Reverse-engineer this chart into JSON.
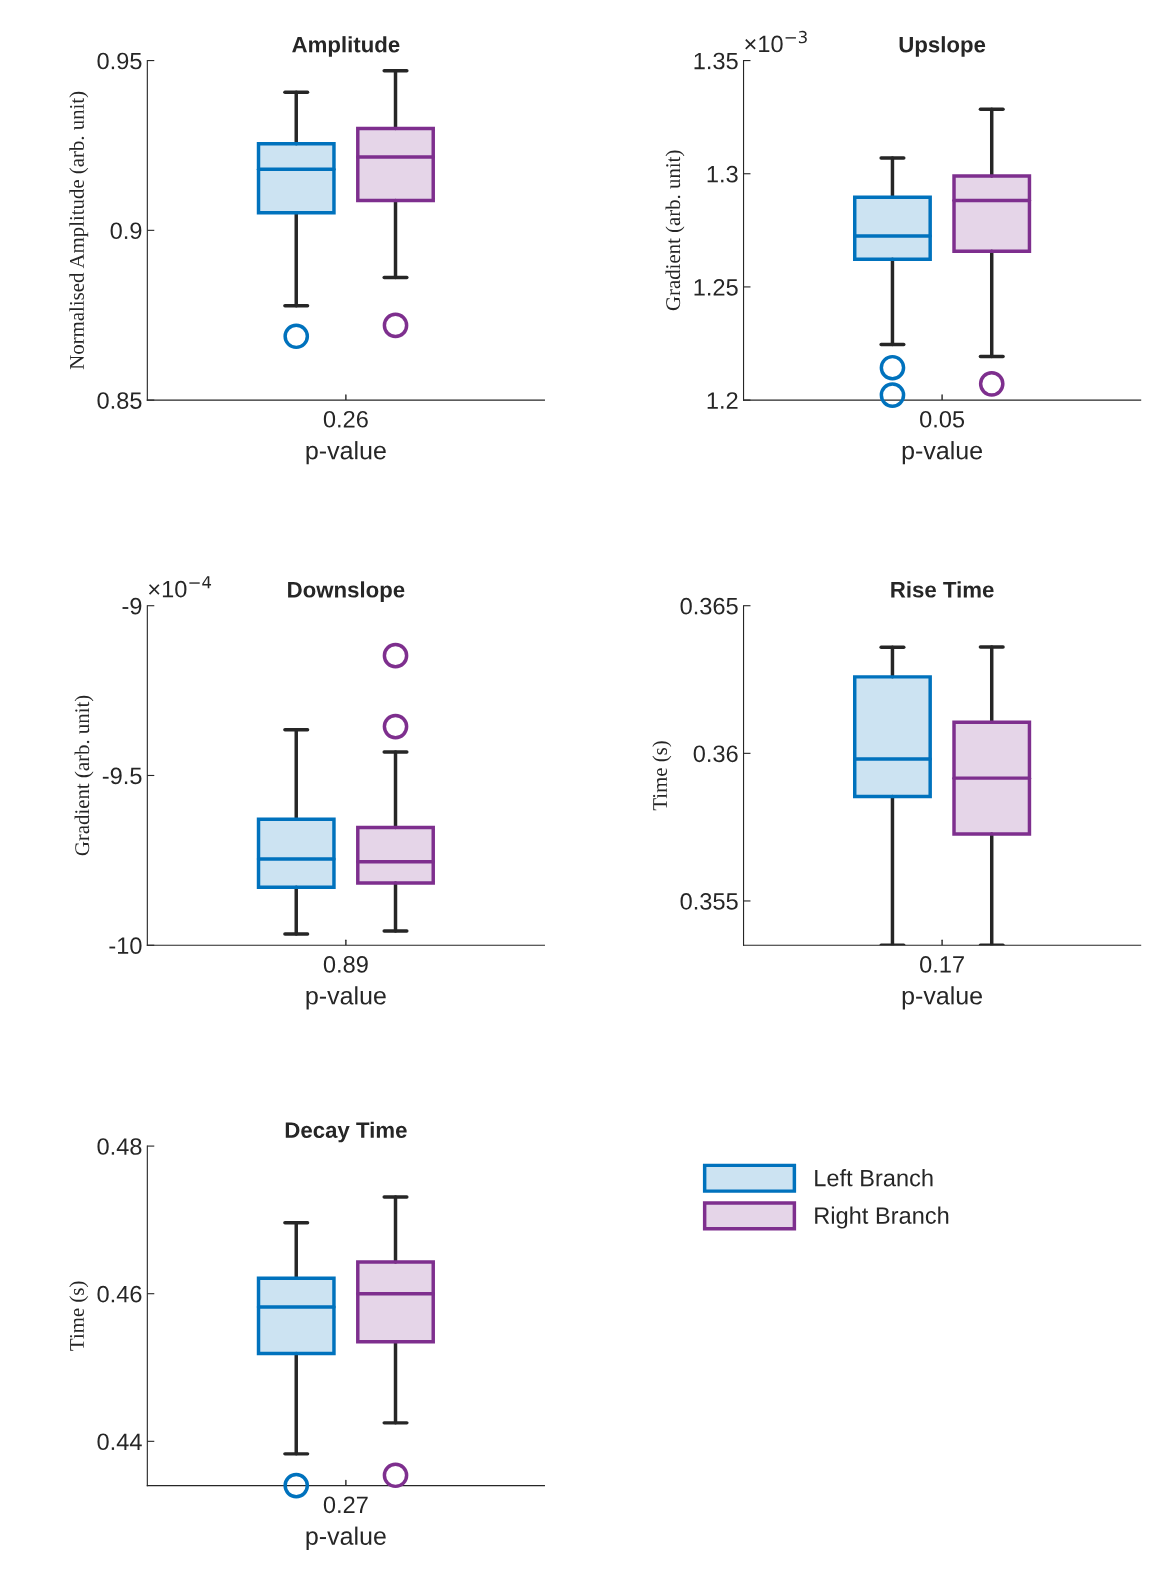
{
  "chart_data": [
    {
      "type": "box",
      "title": "Amplitude",
      "ylabel": "Normalised Amplitude (arb. unit)",
      "xlabel": "p-value",
      "categories": [
        null,
        null
      ],
      "ylim": [
        0.85,
        0.95
      ],
      "yticks": [
        0.85,
        0.9,
        0.95
      ],
      "annotations": [
        "0.26"
      ],
      "series": [
        {
          "color": "#0072bd",
          "boxes": [
            {
              "low": 0.8778,
              "q1": 0.9052,
              "median": 0.918,
              "q3": 0.9255,
              "high": 0.9407,
              "outliers": [
                0.8688
              ]
            },
            null
          ]
        },
        {
          "color": "#7e2f8e",
          "boxes": [
            null,
            {
              "low": 0.8861,
              "q1": 0.9088,
              "median": 0.9216,
              "q3": 0.93,
              "high": 0.947,
              "outliers": [
                0.872
              ]
            }
          ]
        }
      ]
    },
    {
      "type": "box",
      "title": "Upslope",
      "ylabel": "Gradient (arb. unit)",
      "xlabel": "p-value",
      "categories": [
        null,
        null
      ],
      "ylim": [
        1.2,
        1.35
      ],
      "yticks": [
        1.2,
        1.25,
        1.3,
        1.35
      ],
      "annotations": [
        "0.05",
        "×10$^{−3}$"
      ],
      "series": [
        {
          "color": "#0072bd",
          "boxes": [
            {
              "low": 1.2246,
              "q1": 1.2622,
              "median": 1.2725,
              "q3": 1.2896,
              "high": 1.307,
              "outliers": [
                1.2143,
                1.2022
              ]
            },
            null
          ]
        },
        {
          "color": "#7e2f8e",
          "boxes": [
            null,
            {
              "low": 1.2193,
              "q1": 1.2658,
              "median": 1.2882,
              "q3": 1.299,
              "high": 1.3285,
              "outliers": [
                1.2072
              ]
            }
          ]
        }
      ]
    },
    {
      "type": "box",
      "title": "Downslope",
      "ylabel": "Gradient (arb. unit)",
      "xlabel": "p-value",
      "categories": [
        null,
        null
      ],
      "ylim": [
        -10,
        -9
      ],
      "yticks": [
        -10,
        -9.5,
        -9
      ],
      "annotations": [
        "0.89",
        "×10$^{−4}$"
      ],
      "series": [
        {
          "color": "#0072bd",
          "boxes": [
            {
              "low": -9.967,
              "q1": -9.829,
              "median": -9.746,
              "q3": -9.629,
              "high": -9.365
            },
            null
          ]
        },
        {
          "color": "#7e2f8e",
          "boxes": [
            null,
            {
              "low": -9.958,
              "q1": -9.817,
              "median": -9.754,
              "q3": -9.653,
              "high": -9.431,
              "outliers": [
                -9.147,
                -9.356
              ]
            }
          ]
        }
      ]
    },
    {
      "type": "box",
      "title": "Rise Time",
      "ylabel": "Time (s)",
      "xlabel": "p-value",
      "categories": [
        null,
        null
      ],
      "ylim": [
        0.3535,
        0.365
      ],
      "yticks": [
        0.355,
        0.36,
        0.365
      ],
      "annotations": [
        "0.17"
      ],
      "series": [
        {
          "color": "#0072bd",
          "boxes": [
            {
              "low": 0.3535,
              "q1": 0.35854,
              "median": 0.35981,
              "q3": 0.36259,
              "high": 0.36359
            },
            null
          ]
        },
        {
          "color": "#7e2f8e",
          "boxes": [
            null,
            {
              "low": 0.3535,
              "q1": 0.35727,
              "median": 0.35916,
              "q3": 0.36105,
              "high": 0.3636
            }
          ]
        }
      ]
    },
    {
      "type": "box",
      "title": "Decay Time",
      "ylabel": "Time (s)",
      "xlabel": "p-value",
      "categories": [
        null,
        null
      ],
      "ylim": [
        0.434,
        0.48
      ],
      "yticks": [
        0.44,
        0.46,
        0.48
      ],
      "legend": "right",
      "annotations": [
        "0.27"
      ],
      "series": [
        {
          "name": "Left Branch",
          "color": "#0072bd",
          "boxes": [
            {
              "low": 0.4383,
              "q1": 0.4519,
              "median": 0.4582,
              "q3": 0.4621,
              "high": 0.4696,
              "outliers": [
                0.434
              ]
            },
            null
          ]
        },
        {
          "name": "Right Branch",
          "color": "#7e2f8e",
          "boxes": [
            null,
            {
              "low": 0.4425,
              "q1": 0.4535,
              "median": 0.46,
              "q3": 0.4643,
              "high": 0.4731,
              "outliers": [
                0.4354
              ]
            }
          ]
        }
      ]
    }
  ]
}
